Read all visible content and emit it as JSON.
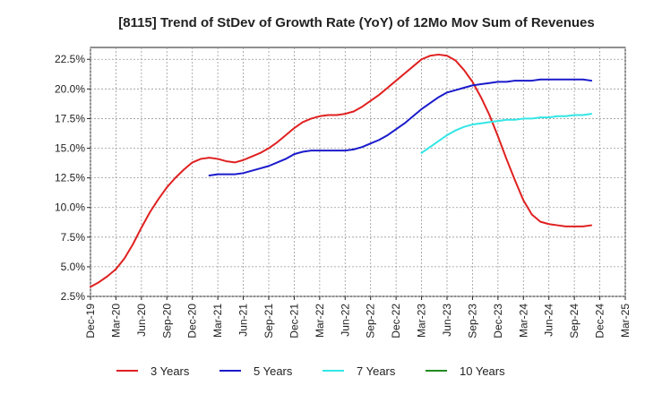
{
  "chart_data": {
    "type": "line",
    "title": "[8115]  Trend of StDev of Growth Rate (YoY) of 12Mo Mov Sum of Revenues",
    "xlabel": "",
    "ylabel": "",
    "y_ticks": [
      "2.5%",
      "5.0%",
      "7.5%",
      "10.0%",
      "12.5%",
      "15.0%",
      "17.5%",
      "20.0%",
      "22.5%"
    ],
    "y_tick_values": [
      2.5,
      5.0,
      7.5,
      10.0,
      12.5,
      15.0,
      17.5,
      20.0,
      22.5
    ],
    "ylim": [
      2.5,
      23.5
    ],
    "x_ticks": [
      "Dec-19",
      "Mar-20",
      "Jun-20",
      "Sep-20",
      "Dec-20",
      "Mar-21",
      "Jun-21",
      "Sep-21",
      "Dec-21",
      "Mar-22",
      "Jun-22",
      "Sep-22",
      "Dec-22",
      "Mar-23",
      "Jun-23",
      "Sep-23",
      "Dec-23",
      "Mar-24",
      "Jun-24",
      "Sep-24",
      "Dec-24",
      "Mar-25"
    ],
    "x_start": "Dec-19",
    "x_range_months": [
      0,
      63
    ],
    "grid": true,
    "legend_position": "bottom",
    "series": [
      {
        "name": "3 Years",
        "color": "#e02020",
        "start_month_index": 0,
        "values": [
          3.3,
          3.7,
          4.2,
          4.8,
          5.7,
          6.9,
          8.3,
          9.6,
          10.7,
          11.7,
          12.5,
          13.2,
          13.8,
          14.1,
          14.2,
          14.1,
          13.9,
          13.8,
          14.0,
          14.3,
          14.6,
          15.0,
          15.5,
          16.1,
          16.7,
          17.2,
          17.5,
          17.7,
          17.8,
          17.8,
          17.9,
          18.1,
          18.5,
          19.0,
          19.5,
          20.1,
          20.7,
          21.3,
          21.9,
          22.5,
          22.8,
          22.9,
          22.8,
          22.4,
          21.6,
          20.6,
          19.3,
          17.8,
          16.0,
          14.1,
          12.3,
          10.6,
          9.4,
          8.8,
          8.6,
          8.5,
          8.4,
          8.4,
          8.4,
          8.5
        ]
      },
      {
        "name": "5 Years",
        "color": "#1a1acc",
        "start_month_index": 14,
        "values": [
          12.7,
          12.8,
          12.8,
          12.8,
          12.9,
          13.1,
          13.3,
          13.5,
          13.8,
          14.1,
          14.5,
          14.7,
          14.8,
          14.8,
          14.8,
          14.8,
          14.8,
          14.9,
          15.1,
          15.4,
          15.7,
          16.1,
          16.6,
          17.1,
          17.7,
          18.3,
          18.8,
          19.3,
          19.7,
          19.9,
          20.1,
          20.3,
          20.4,
          20.5,
          20.6,
          20.6,
          20.7,
          20.7,
          20.7,
          20.8,
          20.8,
          20.8,
          20.8,
          20.8,
          20.8,
          20.7
        ]
      },
      {
        "name": "7 Years",
        "color": "#33e6e6",
        "start_month_index": 39,
        "values": [
          14.6,
          15.1,
          15.6,
          16.1,
          16.5,
          16.8,
          17.0,
          17.1,
          17.2,
          17.3,
          17.4,
          17.4,
          17.5,
          17.5,
          17.6,
          17.6,
          17.7,
          17.7,
          17.8,
          17.8,
          17.9
        ]
      },
      {
        "name": "10 Years",
        "color": "#228b22",
        "start_month_index": 60,
        "values": []
      }
    ]
  }
}
